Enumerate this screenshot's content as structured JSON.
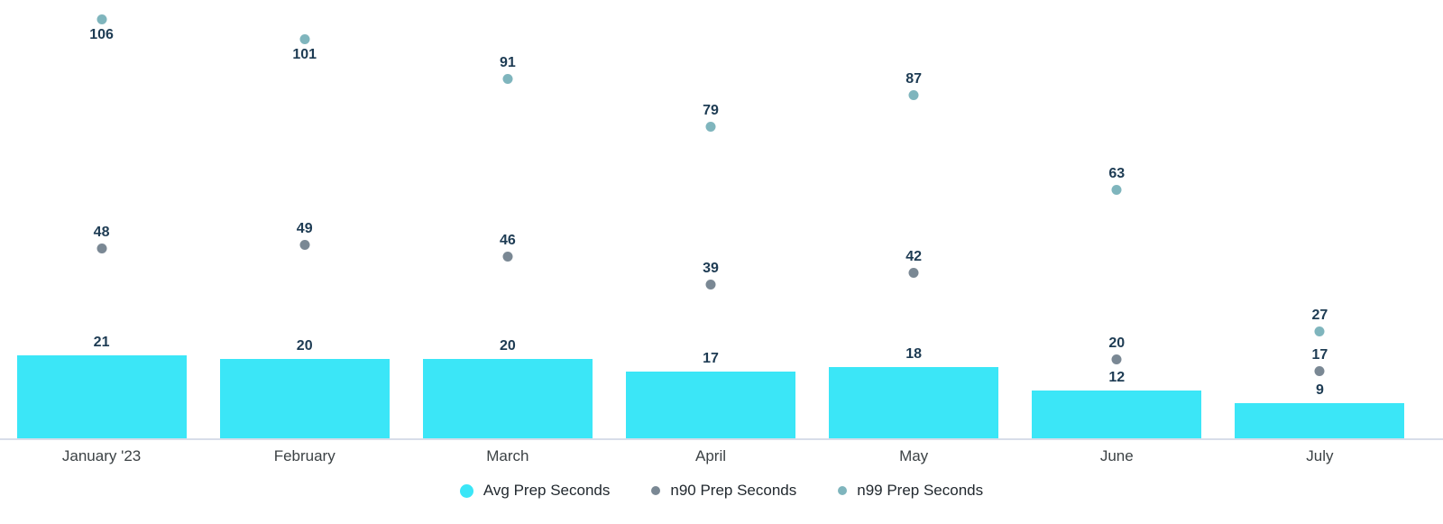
{
  "chart_data": {
    "type": "bar",
    "subtype": "bar-with-scatter-overlay",
    "title": "",
    "xlabel": "",
    "ylabel": "",
    "categories": [
      "January '23",
      "February",
      "March",
      "April",
      "May",
      "June",
      "July"
    ],
    "series": [
      {
        "name": "Avg Prep Seconds",
        "type": "bar",
        "color": "#3be6f7",
        "values": [
          21,
          20,
          20,
          17,
          18,
          12,
          9
        ]
      },
      {
        "name": "n90 Prep Seconds",
        "type": "scatter",
        "color": "#7a8894",
        "values": [
          48,
          49,
          46,
          39,
          42,
          20,
          17
        ]
      },
      {
        "name": "n99 Prep Seconds",
        "type": "scatter",
        "color": "#7fb5bd",
        "values": [
          106,
          101,
          91,
          79,
          87,
          63,
          27
        ]
      }
    ],
    "ylim": [
      0,
      111
    ],
    "grid": false,
    "value_labels": true,
    "legend_position": "bottom",
    "colors": {
      "value_label": "#1d3b53",
      "month_label": "#3c4245",
      "axis_line": "#d8dde9",
      "legend_text": "#22292f"
    }
  }
}
